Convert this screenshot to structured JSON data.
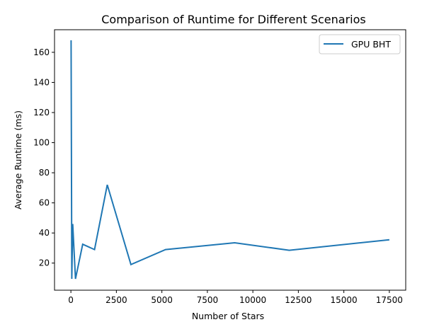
{
  "chart_data": {
    "type": "line",
    "title": "Comparison of Runtime for Different Scenarios",
    "xlabel": "Number of Stars",
    "ylabel": "Average Runtime (ms)",
    "xlim": [
      -900,
      18400
    ],
    "ylim": [
      2,
      175
    ],
    "xticks": [
      0,
      2500,
      5000,
      7500,
      10000,
      12500,
      15000,
      17500
    ],
    "yticks": [
      20,
      40,
      60,
      80,
      100,
      120,
      140,
      160
    ],
    "grid": false,
    "legend_position": "upper right",
    "series": [
      {
        "name": "GPU BHT",
        "color": "#1f77b4",
        "x": [
          10,
          50,
          100,
          250,
          650,
          1300,
          2000,
          3300,
          5200,
          9000,
          12000,
          17500
        ],
        "y": [
          168,
          9.5,
          46,
          9.5,
          32.5,
          29,
          72,
          19,
          29,
          33.5,
          28.5,
          35.5
        ]
      }
    ]
  }
}
